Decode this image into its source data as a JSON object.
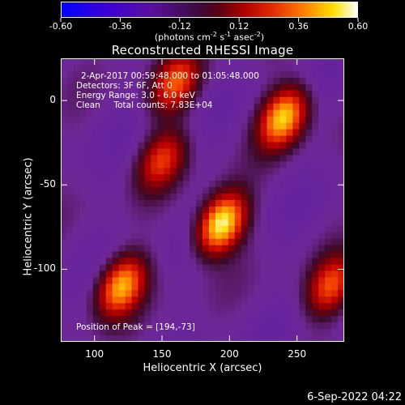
{
  "chart_data": {
    "type": "heatmap",
    "title": "Reconstructed RHESSI Image",
    "xlabel": "Heliocentric X (arcsec)",
    "ylabel": "Heliocentric Y (arcsec)",
    "xlim": [
      75,
      285
    ],
    "ylim": [
      -143,
      25
    ],
    "x_ticks": [
      100,
      150,
      200,
      250
    ],
    "y_ticks": [
      0,
      -50,
      -100
    ],
    "colorbar": {
      "min": -0.6,
      "max": 0.6,
      "ticks": [
        "-0.60",
        "-0.36",
        "-0.12",
        "0.12",
        "0.36",
        "0.60"
      ],
      "units_prefix": "(photons cm",
      "units_exp1": "-2",
      "units_mid": " s",
      "units_exp2": "-1",
      "units_mid2": " asec",
      "units_exp3": "-2",
      "units_suffix": ")"
    },
    "sources": [
      {
        "x": 194,
        "y": -73,
        "peak": 0.6
      },
      {
        "x": 240,
        "y": -10,
        "peak": 0.5
      },
      {
        "x": 120,
        "y": -110,
        "peak": 0.45
      },
      {
        "x": 160,
        "y": 10,
        "peak": 0.3
      },
      {
        "x": 275,
        "y": -110,
        "peak": 0.3
      },
      {
        "x": 150,
        "y": -35,
        "peak": 0.25
      }
    ],
    "annotations": {
      "time_range": "2-Apr-2017 00:59:48.000 to 01:05:48.000",
      "detectors": "Detectors: 3F 6F, Att 0",
      "energy": "Energy Range: 3.0 - 6.0 keV",
      "clean": "Clean     Total counts: 7.83E+04",
      "peak": "Position of Peak = [194,-73]"
    }
  },
  "footer": {
    "date": "6-Sep-2022 04:22"
  }
}
